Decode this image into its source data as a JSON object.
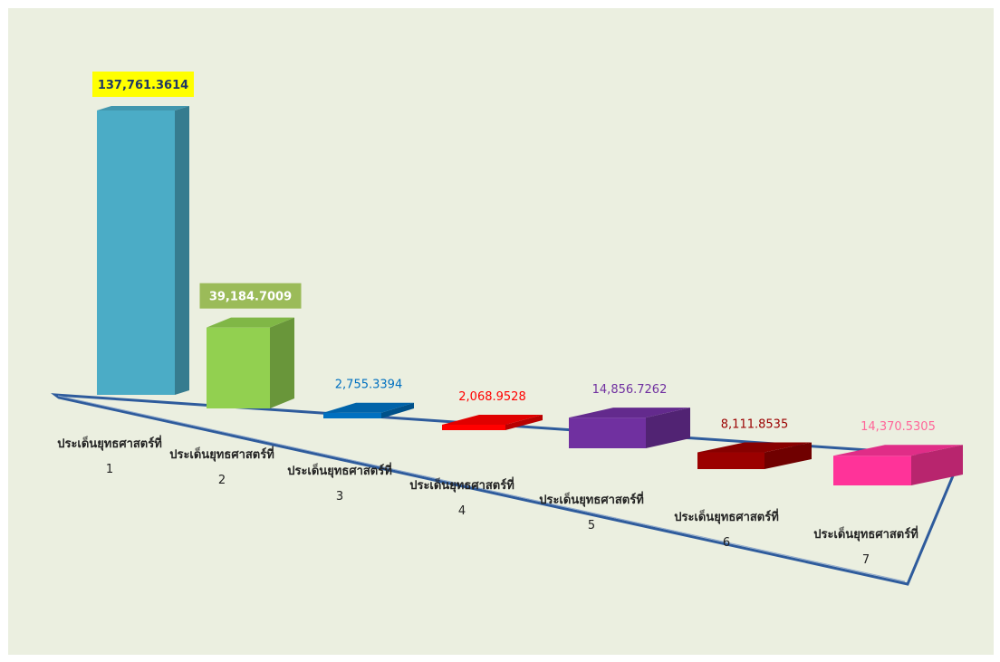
{
  "chart_data": {
    "type": "bar",
    "title": "",
    "xlabel": "",
    "ylabel": "",
    "categories": [
      {
        "label": "ประเด็นยุทธศาสตร์ที่",
        "number": "1"
      },
      {
        "label": "ประเด็นยุทธศาสตร์ที่",
        "number": "2"
      },
      {
        "label": "ประเด็นยุทธศาสตร์ที่",
        "number": "3"
      },
      {
        "label": "ประเด็นยุทธศาสตร์ที่",
        "number": "4"
      },
      {
        "label": "ประเด็นยุทธศาสตร์ที่",
        "number": "5"
      },
      {
        "label": "ประเด็นยุทธศาสตร์ที่",
        "number": "6"
      },
      {
        "label": "ประเด็นยุทธศาสตร์ที่",
        "number": "7"
      }
    ],
    "values": [
      137761.3614,
      39184.7009,
      2755.3394,
      2068.9528,
      14856.7262,
      8111.8535,
      14370.5305
    ],
    "value_labels": [
      "137,761.3614",
      "39,184.7009",
      "2,755.3394",
      "2,068.9528",
      "14,856.7262",
      "8,111.8535",
      "14,370.5305"
    ],
    "bar_colors": [
      "#4bacc6",
      "#92d050",
      "#0070c0",
      "#ff0000",
      "#7030a0",
      "#9b0000",
      "#ff3399"
    ],
    "label_colors": [
      "#1f3864",
      "#ffffff",
      "#0070c0",
      "#ff0000",
      "#7030a0",
      "#9b0000",
      "#ff6699"
    ],
    "label_backgrounds": [
      "#ffff00",
      "#9bbb59",
      null,
      null,
      null,
      null,
      null
    ],
    "background_color": "#ebefe0",
    "floor_edge_color": "#2e5b9c",
    "grid": false,
    "legend": "none"
  }
}
